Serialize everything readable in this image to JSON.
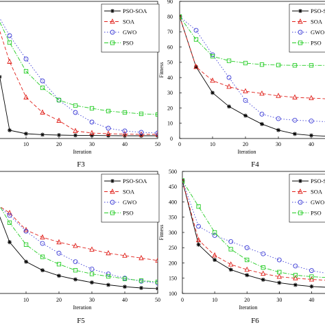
{
  "figure": {
    "colors": {
      "PSO-SOA": "#000000",
      "SOA": "#e0201a",
      "GWO": "#3d3dd6",
      "PSO": "#22cc22",
      "axis": "#000000"
    }
  },
  "chart_data": [
    {
      "id": "F3",
      "type": "line",
      "caption": "F3",
      "xlabel": "Iteration",
      "ylabel": "",
      "xlim": [
        0,
        50
      ],
      "ylim": [
        0,
        10
      ],
      "xticks": [
        "10",
        "20",
        "30",
        "40",
        "50"
      ],
      "yticks": [],
      "legend": {
        "position": "top-right",
        "entries": [
          "PSO-SOA",
          "SOA",
          "GWO",
          "PSO"
        ]
      },
      "series": [
        {
          "name": "PSO-SOA",
          "marker": "star",
          "dash": "solid",
          "x": [
            1,
            2,
            5,
            10,
            15,
            20,
            25,
            30,
            35,
            40,
            45,
            50
          ],
          "y": [
            7.5,
            4.5,
            0.6,
            0.35,
            0.28,
            0.25,
            0.23,
            0.22,
            0.21,
            0.2,
            0.2,
            0.2
          ]
        },
        {
          "name": "SOA",
          "marker": "triangle",
          "dash": "dashed",
          "x": [
            1,
            5,
            10,
            15,
            20,
            25,
            30,
            35,
            40,
            45,
            50
          ],
          "y": [
            8.6,
            5.6,
            3.0,
            1.9,
            1.3,
            0.55,
            0.4,
            0.35,
            0.32,
            0.3,
            0.3
          ]
        },
        {
          "name": "GWO",
          "marker": "circle",
          "dash": "dotted",
          "x": [
            1,
            5,
            10,
            15,
            20,
            25,
            30,
            35,
            40,
            45,
            50
          ],
          "y": [
            9.2,
            7.5,
            5.8,
            4.2,
            2.8,
            1.9,
            1.2,
            0.75,
            0.55,
            0.45,
            0.4
          ]
        },
        {
          "name": "PSO",
          "marker": "square",
          "dash": "dashdot",
          "x": [
            1,
            5,
            10,
            15,
            20,
            25,
            30,
            35,
            40,
            45,
            50
          ],
          "y": [
            9.0,
            7.0,
            4.9,
            3.7,
            2.8,
            2.4,
            2.2,
            2.0,
            1.9,
            1.8,
            1.75
          ]
        }
      ]
    },
    {
      "id": "F4",
      "type": "line",
      "caption": "F4",
      "xlabel": "Iteration",
      "ylabel": "Fitness",
      "xlim": [
        0,
        45
      ],
      "ylim": [
        0,
        90
      ],
      "xticks": [
        "0",
        "10",
        "20",
        "30",
        "40"
      ],
      "yticks": [
        "0",
        "10",
        "20",
        "30",
        "40",
        "50",
        "60",
        "70",
        "80",
        "90"
      ],
      "legend": {
        "position": "top-right",
        "entries": [
          "PSO-SOA",
          "SOA",
          "GWO",
          "PSO"
        ]
      },
      "series": [
        {
          "name": "PSO-SOA",
          "marker": "star",
          "dash": "solid",
          "x": [
            0,
            5,
            10,
            15,
            20,
            25,
            30,
            35,
            40,
            45
          ],
          "y": [
            80,
            47,
            30,
            21,
            15,
            9.5,
            5.5,
            3,
            2,
            1.5
          ]
        },
        {
          "name": "SOA",
          "marker": "triangle",
          "dash": "dashed",
          "x": [
            0,
            5,
            10,
            15,
            20,
            25,
            30,
            35,
            40,
            45
          ],
          "y": [
            80,
            47,
            38,
            34,
            31,
            29.5,
            28,
            27,
            26.5,
            26
          ]
        },
        {
          "name": "GWO",
          "marker": "circle",
          "dash": "dotted",
          "x": [
            0,
            5,
            10,
            15,
            20,
            25,
            30,
            35,
            40,
            45
          ],
          "y": [
            80,
            71,
            55,
            40,
            25,
            16,
            13,
            12,
            11.5,
            11
          ]
        },
        {
          "name": "PSO",
          "marker": "square",
          "dash": "dashdot",
          "x": [
            0,
            5,
            10,
            15,
            20,
            25,
            30,
            35,
            40,
            45
          ],
          "y": [
            80,
            65,
            54,
            51,
            49.5,
            48.5,
            48.2,
            48,
            48,
            48
          ]
        }
      ]
    },
    {
      "id": "F5",
      "type": "line",
      "caption": "F5",
      "xlabel": "Iteration",
      "ylabel": "",
      "xlim": [
        0,
        50
      ],
      "ylim": [
        0,
        10
      ],
      "xticks": [
        "10",
        "20",
        "30",
        "40",
        "50"
      ],
      "yticks": [],
      "legend": {
        "position": "top-right",
        "entries": [
          "PSO-SOA",
          "SOA",
          "GWO",
          "PSO"
        ]
      },
      "series": [
        {
          "name": "PSO-SOA",
          "marker": "star",
          "dash": "solid",
          "x": [
            1,
            5,
            10,
            15,
            20,
            25,
            30,
            35,
            40,
            45,
            50
          ],
          "y": [
            7.0,
            4.2,
            2.6,
            1.9,
            1.45,
            1.15,
            0.9,
            0.7,
            0.55,
            0.45,
            0.4
          ]
        },
        {
          "name": "SOA",
          "marker": "triangle",
          "dash": "dashed",
          "x": [
            1,
            5,
            10,
            15,
            20,
            25,
            30,
            35,
            40,
            45,
            50
          ],
          "y": [
            7.3,
            6.6,
            5.2,
            4.6,
            4.2,
            3.9,
            3.6,
            3.3,
            3.1,
            2.9,
            2.7
          ]
        },
        {
          "name": "GWO",
          "marker": "circle",
          "dash": "dotted",
          "x": [
            1,
            5,
            10,
            15,
            20,
            25,
            30,
            35,
            40,
            45,
            50
          ],
          "y": [
            7.3,
            6.4,
            5.1,
            4.1,
            3.3,
            2.6,
            2.0,
            1.6,
            1.25,
            1.0,
            0.85
          ]
        },
        {
          "name": "PSO",
          "marker": "square",
          "dash": "dashdot",
          "x": [
            1,
            5,
            10,
            15,
            20,
            25,
            30,
            35,
            40,
            45,
            50
          ],
          "y": [
            7.6,
            5.8,
            4.0,
            3.0,
            2.4,
            1.9,
            1.6,
            1.4,
            1.2,
            1.05,
            0.95
          ]
        }
      ]
    },
    {
      "id": "F6",
      "type": "line",
      "caption": "F6",
      "xlabel": "Iteration",
      "ylabel": "Fitness",
      "xlim": [
        0,
        45
      ],
      "ylim": [
        100,
        500
      ],
      "xticks": [
        "0",
        "10",
        "20",
        "30",
        "40"
      ],
      "yticks": [
        "100",
        "150",
        "200",
        "250",
        "300",
        "350",
        "400",
        "450",
        "500"
      ],
      "legend": {
        "position": "top-right",
        "entries": [
          "PSO-SOA",
          "SOA",
          "GWO",
          "PSO"
        ]
      },
      "series": [
        {
          "name": "PSO-SOA",
          "marker": "star",
          "dash": "solid",
          "x": [
            0,
            5,
            10,
            15,
            20,
            25,
            30,
            35,
            40,
            45
          ],
          "y": [
            470,
            260,
            210,
            178,
            160,
            145,
            135,
            128,
            123,
            120
          ]
        },
        {
          "name": "SOA",
          "marker": "triangle",
          "dash": "dashed",
          "x": [
            0,
            5,
            10,
            15,
            20,
            25,
            30,
            35,
            40,
            45
          ],
          "y": [
            470,
            275,
            225,
            195,
            178,
            165,
            155,
            150,
            146,
            143
          ]
        },
        {
          "name": "GWO",
          "marker": "circle",
          "dash": "dotted",
          "x": [
            0,
            5,
            10,
            15,
            20,
            25,
            30,
            35,
            40,
            45
          ],
          "y": [
            470,
            320,
            290,
            270,
            250,
            230,
            210,
            190,
            175,
            165
          ]
        },
        {
          "name": "PSO",
          "marker": "square",
          "dash": "dashdot",
          "x": [
            0,
            5,
            10,
            15,
            20,
            25,
            30,
            35,
            40,
            45
          ],
          "y": [
            470,
            385,
            300,
            245,
            210,
            185,
            170,
            160,
            155,
            152
          ]
        }
      ]
    }
  ]
}
